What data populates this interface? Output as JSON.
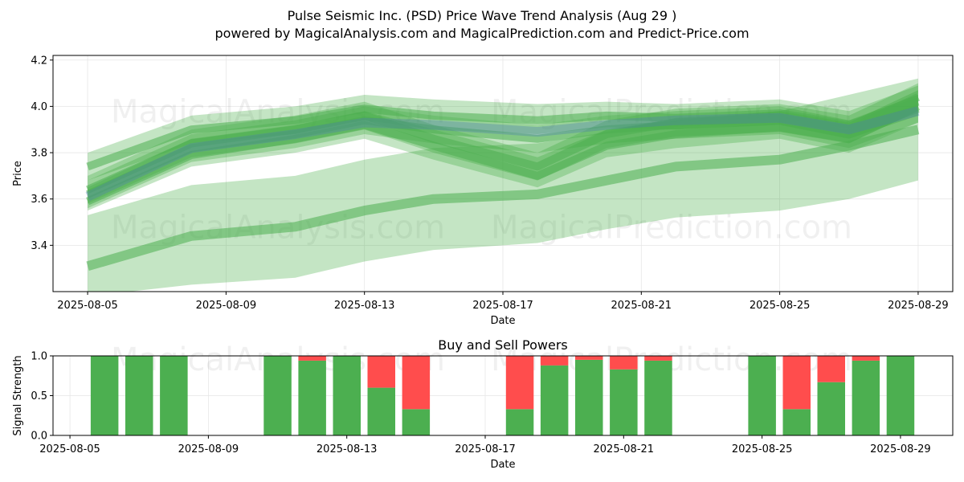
{
  "header": {
    "title": "Pulse Seismic Inc. (PSD) Price Wave Trend Analysis (Aug 29 )",
    "subtitle": "powered by MagicalAnalysis.com and MagicalPrediction.com and Predict-Price.com"
  },
  "watermarks": [
    "MagicalAnalysis.com",
    "MagicalPrediction.com"
  ],
  "colors": {
    "band_green": "#2ca02c",
    "trend_green": "#4caf50",
    "buy": "#4caf50",
    "sell": "#ff4d4d",
    "wave_blue": "#4a7fb0"
  },
  "chart_data": [
    {
      "type": "line",
      "title": "",
      "xlabel": "Date",
      "ylabel": "Price",
      "xlim": [
        "2025-08-04",
        "2025-08-30"
      ],
      "ylim": [
        3.2,
        4.22
      ],
      "y_ticks": [
        3.4,
        3.6,
        3.8,
        4.0,
        4.2
      ],
      "x_ticks": [
        "2025-08-05",
        "2025-08-09",
        "2025-08-13",
        "2025-08-17",
        "2025-08-21",
        "2025-08-25",
        "2025-08-29"
      ],
      "grid": true,
      "series": [
        {
          "x": [
            "2025-08-05",
            "2025-08-08",
            "2025-08-11",
            "2025-08-13",
            "2025-08-15",
            "2025-08-18",
            "2025-08-20",
            "2025-08-22",
            "2025-08-25",
            "2025-08-27",
            "2025-08-29"
          ],
          "y": [
            3.31,
            3.44,
            3.48,
            3.55,
            3.6,
            3.62,
            3.68,
            3.74,
            3.77,
            3.83,
            3.9
          ],
          "lower": [
            3.18,
            3.23,
            3.26,
            3.33,
            3.38,
            3.41,
            3.47,
            3.52,
            3.55,
            3.6,
            3.68
          ],
          "upper": [
            3.53,
            3.66,
            3.7,
            3.77,
            3.82,
            3.84,
            3.89,
            3.95,
            3.98,
            4.05,
            4.12
          ]
        },
        {
          "x": [
            "2025-08-05",
            "2025-08-08",
            "2025-08-11",
            "2025-08-13",
            "2025-08-15",
            "2025-08-18",
            "2025-08-20",
            "2025-08-22",
            "2025-08-25",
            "2025-08-27",
            "2025-08-29"
          ],
          "y": [
            3.59,
            3.79,
            3.86,
            3.92,
            3.83,
            3.7,
            3.83,
            3.88,
            3.91,
            3.86,
            4.0
          ],
          "lower": [
            3.55,
            3.74,
            3.8,
            3.86,
            3.77,
            3.65,
            3.78,
            3.82,
            3.86,
            3.8,
            3.93
          ],
          "upper": [
            3.65,
            3.86,
            3.92,
            3.98,
            3.9,
            3.78,
            3.9,
            3.94,
            3.98,
            3.93,
            4.07
          ]
        },
        {
          "x": [
            "2025-08-05",
            "2025-08-08",
            "2025-08-11",
            "2025-08-13",
            "2025-08-15",
            "2025-08-18",
            "2025-08-20",
            "2025-08-22",
            "2025-08-25",
            "2025-08-27",
            "2025-08-29"
          ],
          "y": [
            3.74,
            3.9,
            3.94,
            3.99,
            3.96,
            3.94,
            3.96,
            3.95,
            3.97,
            3.92,
            4.02
          ],
          "lower": [
            3.68,
            3.84,
            3.88,
            3.94,
            3.9,
            3.88,
            3.91,
            3.9,
            3.92,
            3.86,
            3.96
          ],
          "upper": [
            3.8,
            3.96,
            4.0,
            4.05,
            4.03,
            4.01,
            4.02,
            4.01,
            4.03,
            3.98,
            4.09
          ]
        },
        {
          "x": [
            "2025-08-05",
            "2025-08-08",
            "2025-08-11",
            "2025-08-13",
            "2025-08-15",
            "2025-08-18",
            "2025-08-20",
            "2025-08-22",
            "2025-08-25",
            "2025-08-27",
            "2025-08-29"
          ],
          "y": [
            3.62,
            3.82,
            3.88,
            3.94,
            3.9,
            3.86,
            3.9,
            3.92,
            3.94,
            3.88,
            3.99
          ],
          "lower": [
            3.56,
            3.76,
            3.82,
            3.88,
            3.84,
            3.8,
            3.84,
            3.86,
            3.88,
            3.82,
            3.93
          ],
          "upper": [
            3.68,
            3.88,
            3.94,
            4.0,
            3.96,
            3.92,
            3.96,
            3.98,
            4.0,
            3.94,
            4.05
          ]
        },
        {
          "x": [
            "2025-08-05",
            "2025-08-08",
            "2025-08-11",
            "2025-08-13",
            "2025-08-15",
            "2025-08-18",
            "2025-08-20",
            "2025-08-22",
            "2025-08-25",
            "2025-08-27",
            "2025-08-29"
          ],
          "y": [
            3.64,
            3.84,
            3.9,
            3.96,
            3.86,
            3.74,
            3.88,
            3.93,
            3.95,
            3.9,
            4.04
          ],
          "lower": [
            3.58,
            3.78,
            3.84,
            3.9,
            3.8,
            3.68,
            3.82,
            3.87,
            3.89,
            3.84,
            3.98
          ],
          "upper": [
            3.7,
            3.9,
            3.96,
            4.02,
            3.92,
            3.8,
            3.94,
            3.99,
            4.01,
            3.96,
            4.1
          ]
        }
      ],
      "blue_wave": {
        "x": [
          "2025-08-05",
          "2025-08-08",
          "2025-08-11",
          "2025-08-13",
          "2025-08-15",
          "2025-08-18",
          "2025-08-20",
          "2025-08-22",
          "2025-08-25",
          "2025-08-27",
          "2025-08-29"
        ],
        "y": [
          3.61,
          3.82,
          3.88,
          3.93,
          3.92,
          3.89,
          3.92,
          3.94,
          3.95,
          3.9,
          3.98
        ]
      }
    },
    {
      "type": "bar",
      "title": "Buy and Sell Powers",
      "xlabel": "Date",
      "ylabel": "Signal Strength",
      "xlim": [
        "2025-08-04",
        "2025-08-30"
      ],
      "ylim": [
        0,
        1.0
      ],
      "y_ticks": [
        "0.0",
        "0.5",
        "1.0"
      ],
      "x_ticks": [
        "2025-08-05",
        "2025-08-09",
        "2025-08-13",
        "2025-08-17",
        "2025-08-21",
        "2025-08-25",
        "2025-08-29"
      ],
      "grid": true,
      "categories": [
        "2025-08-06",
        "2025-08-07",
        "2025-08-08",
        "2025-08-11",
        "2025-08-12",
        "2025-08-13",
        "2025-08-14",
        "2025-08-15",
        "2025-08-18",
        "2025-08-19",
        "2025-08-20",
        "2025-08-21",
        "2025-08-22",
        "2025-08-25",
        "2025-08-26",
        "2025-08-27",
        "2025-08-28",
        "2025-08-29"
      ],
      "series": [
        {
          "name": "Buy",
          "values": [
            1.0,
            1.0,
            1.0,
            1.0,
            0.94,
            1.0,
            0.6,
            0.33,
            0.33,
            0.88,
            0.95,
            0.83,
            0.94,
            1.0,
            0.33,
            0.67,
            0.94,
            1.0
          ]
        },
        {
          "name": "Sell",
          "values": [
            0.0,
            0.0,
            0.0,
            0.0,
            0.06,
            0.0,
            0.4,
            0.67,
            0.67,
            0.12,
            0.05,
            0.17,
            0.06,
            0.0,
            0.67,
            0.33,
            0.06,
            0.0
          ]
        }
      ]
    }
  ]
}
